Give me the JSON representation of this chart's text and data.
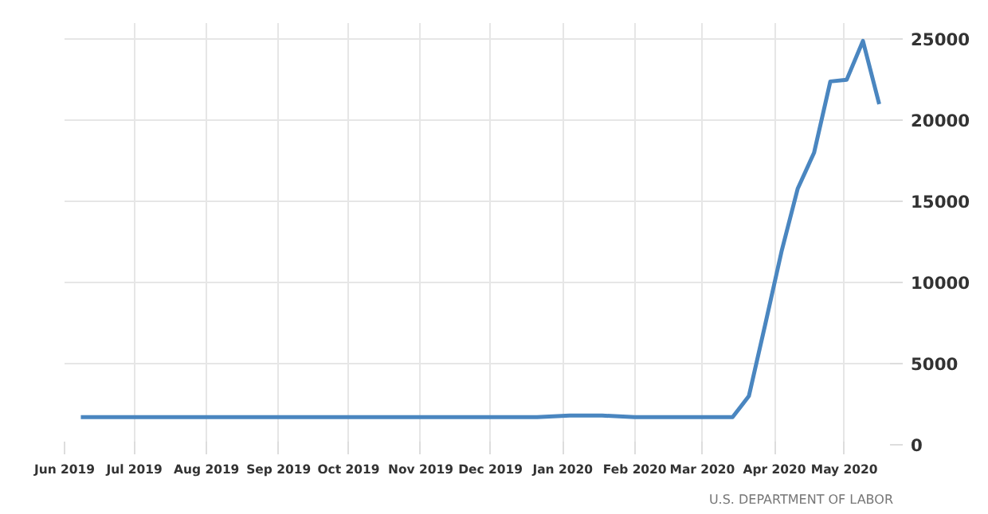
{
  "chart_data": {
    "type": "line",
    "annotations": [
      "U.S. DEPARTMENT OF LABOR"
    ],
    "x": [
      "2019-06-08",
      "2019-06-22",
      "2019-07-06",
      "2019-07-20",
      "2019-08-03",
      "2019-08-17",
      "2019-08-31",
      "2019-09-14",
      "2019-09-28",
      "2019-10-12",
      "2019-10-26",
      "2019-11-09",
      "2019-11-23",
      "2019-12-07",
      "2019-12-21",
      "2020-01-04",
      "2020-01-18",
      "2020-02-01",
      "2020-02-15",
      "2020-02-29",
      "2020-03-07",
      "2020-03-14",
      "2020-03-21",
      "2020-03-28",
      "2020-04-04",
      "2020-04-11",
      "2020-04-18",
      "2020-04-25",
      "2020-05-02",
      "2020-05-09",
      "2020-05-16"
    ],
    "series": [
      {
        "color": "#4a86c0",
        "values": [
          1700,
          1700,
          1700,
          1700,
          1700,
          1700,
          1700,
          1700,
          1700,
          1700,
          1700,
          1700,
          1700,
          1700,
          1700,
          1800,
          1800,
          1700,
          1700,
          1700,
          1700,
          1700,
          3000,
          7400,
          11900,
          15800,
          18000,
          22400,
          22500,
          24900,
          21000
        ]
      }
    ],
    "xlim": [
      "2019-06-01",
      "2020-05-22"
    ],
    "xticks": [
      {
        "value": "2019-06-01",
        "label": "Jun 2019"
      },
      {
        "value": "2019-07-01",
        "label": "Jul 2019"
      },
      {
        "value": "2019-08-01",
        "label": "Aug 2019"
      },
      {
        "value": "2019-09-01",
        "label": "Sep 2019"
      },
      {
        "value": "2019-10-01",
        "label": "Oct 2019"
      },
      {
        "value": "2019-11-01",
        "label": "Nov 2019"
      },
      {
        "value": "2019-12-01",
        "label": "Dec 2019"
      },
      {
        "value": "2020-01-01",
        "label": "Jan 2020"
      },
      {
        "value": "2020-02-01",
        "label": "Feb 2020"
      },
      {
        "value": "2020-03-01",
        "label": "Mar 2020"
      },
      {
        "value": "2020-04-01",
        "label": "Apr 2020"
      },
      {
        "value": "2020-05-01",
        "label": "May 2020"
      }
    ],
    "ylim": [
      0,
      26000
    ],
    "yticks": [
      0,
      5000,
      10000,
      15000,
      20000,
      25000
    ],
    "grid": true,
    "line_style": "solid"
  }
}
